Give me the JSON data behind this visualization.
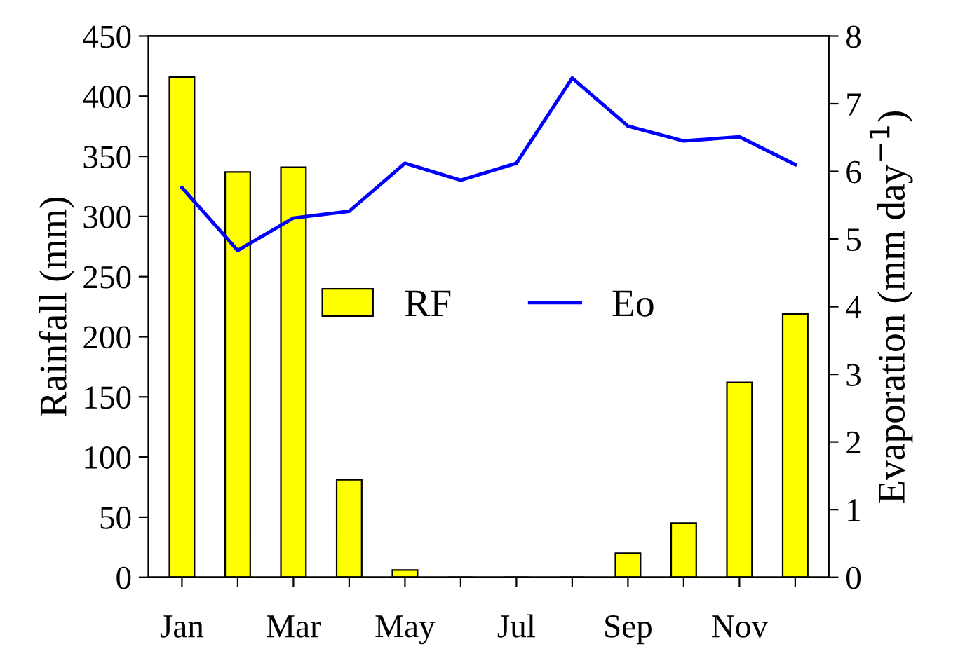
{
  "chart_data": {
    "type": "bar",
    "ylabel": "Rainfall (mm)",
    "y2label": "Evaporation (mm day$^{−1}$)",
    "categories": [
      "Jan",
      null,
      "Mar",
      null,
      "May",
      null,
      "Jul",
      null,
      "Sep",
      null,
      "Nov",
      null
    ],
    "series": [
      {
        "name": "RF",
        "color": "#ffff00",
        "values": [
          416,
          337,
          341,
          81,
          6,
          0,
          0,
          0,
          20,
          45,
          162,
          219
        ]
      },
      {
        "name": "Eo",
        "type": "line",
        "axis": "y2",
        "color": "#0000ff",
        "marker": "none",
        "values": [
          5.76,
          4.83,
          5.31,
          5.41,
          6.12,
          5.87,
          6.12,
          7.38,
          6.67,
          6.45,
          6.51,
          6.1
        ]
      }
    ],
    "ylim": [
      0,
      450
    ],
    "yticks": [
      0,
      50,
      100,
      150,
      200,
      250,
      300,
      350,
      400,
      450
    ],
    "y2lim": [
      0,
      8
    ],
    "y2ticks": [
      0,
      1,
      2,
      3,
      4,
      5,
      6,
      7,
      8
    ],
    "grid": false,
    "legend": "center"
  }
}
